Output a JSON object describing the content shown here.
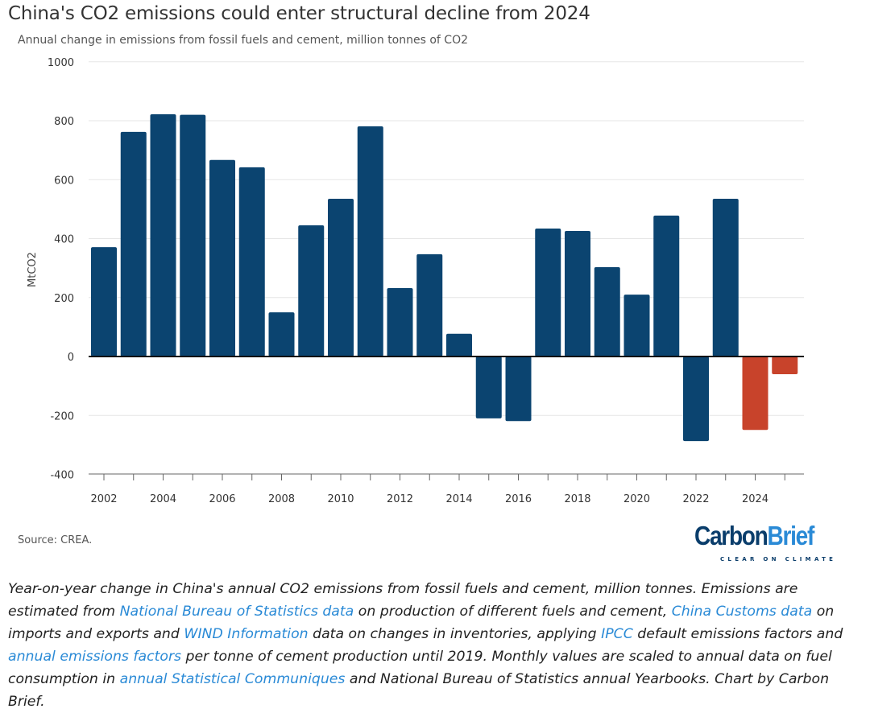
{
  "chart_data": {
    "type": "bar",
    "title": "China's CO2 emissions could enter structural decline from 2024",
    "subtitle": "Annual change in emissions from fossil fuels and cement, million tonnes of CO2",
    "ylabel": "MtCO2",
    "xlabel": "",
    "ylim": [
      -400,
      1000
    ],
    "yticks": [
      -400,
      -200,
      0,
      200,
      400,
      600,
      800,
      1000
    ],
    "xtick_labels": [
      "2002",
      "2004",
      "2006",
      "2008",
      "2010",
      "2012",
      "2014",
      "2016",
      "2018",
      "2020",
      "2022",
      "2024"
    ],
    "grid": true,
    "categories": [
      2002,
      2003,
      2004,
      2005,
      2006,
      2007,
      2008,
      2009,
      2010,
      2011,
      2012,
      2013,
      2014,
      2015,
      2016,
      2017,
      2018,
      2019,
      2020,
      2021,
      2022,
      2023,
      2024,
      2025
    ],
    "values": [
      371,
      762,
      822,
      820,
      667,
      642,
      150,
      445,
      535,
      781,
      232,
      347,
      77,
      -210,
      -219,
      434,
      426,
      303,
      210,
      478,
      -287,
      535,
      -249,
      -60
    ],
    "colors": {
      "historical": "#0b4470",
      "projected": "#c8432b"
    },
    "projected_from": 2024
  },
  "source": "Source: CREA.",
  "logo": {
    "text1": "Carbon",
    "text2": "Brief",
    "tagline": "CLEAR ON CLIMATE"
  },
  "caption": {
    "parts": [
      {
        "text": "Year-on-year change in China's annual CO2 emissions from fossil fuels and cement, million tonnes. Emissions are estimated from ",
        "link": false
      },
      {
        "text": "National Bureau of Statistics data",
        "link": true
      },
      {
        "text": " on production of different fuels and cement, ",
        "link": false
      },
      {
        "text": "China Customs data",
        "link": true
      },
      {
        "text": " on imports and exports and ",
        "link": false
      },
      {
        "text": "WIND Information",
        "link": true
      },
      {
        "text": " data on changes in inventories, applying ",
        "link": false
      },
      {
        "text": "IPCC",
        "link": true
      },
      {
        "text": " default emissions factors and ",
        "link": false
      },
      {
        "text": "annual emissions factors",
        "link": true
      },
      {
        "text": " per tonne of cement production until 2019. Monthly values are scaled to annual data on fuel consumption in ",
        "link": false
      },
      {
        "text": "annual Statistical Communiques",
        "link": true
      },
      {
        "text": " and National Bureau of Statistics annual Yearbooks. Chart by Carbon Brief.",
        "link": false
      }
    ]
  }
}
